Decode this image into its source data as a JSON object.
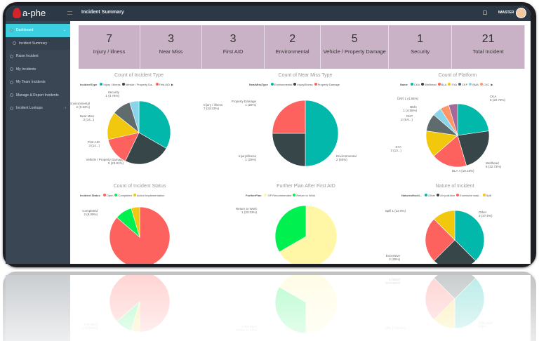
{
  "header": {
    "brand": "a-phe",
    "title": "Incident Summary",
    "user": "IMASTER"
  },
  "sidebar": {
    "items": [
      {
        "label": "Dashboard",
        "active": true
      },
      {
        "label": "Incident Summary",
        "sub": true
      },
      {
        "label": "Raise Incident"
      },
      {
        "label": "My Incidents"
      },
      {
        "label": "My Team Incidents"
      },
      {
        "label": "Manage & Report Incidents"
      },
      {
        "label": "Incident Lookups"
      }
    ]
  },
  "kpis": [
    {
      "value": "7",
      "label": "Injury / illness"
    },
    {
      "value": "3",
      "label": "Near Miss"
    },
    {
      "value": "3",
      "label": "First AID"
    },
    {
      "value": "2",
      "label": "Environmental"
    },
    {
      "value": "5",
      "label": "Vehicle / Property Damage"
    },
    {
      "value": "1",
      "label": "Security"
    },
    {
      "value": "21",
      "label": "Total Incident"
    }
  ],
  "chart_data": [
    {
      "type": "pie",
      "title": "Count of Incident Type",
      "legend_title": "IncidentType",
      "legend": [
        "Injury / illness",
        "Vehicle / Property Da...",
        "First AID"
      ],
      "slices": [
        {
          "name": "Injury / illness",
          "value": 7,
          "label": "Injury / illness",
          "sublabel": "7 (33.33%)",
          "color": "#01b8aa"
        },
        {
          "name": "Vehicle / Property Damage",
          "value": 5,
          "label": "Vehicle / Property Damage",
          "sublabel": "5 (23.81%)",
          "color": "#374649"
        },
        {
          "name": "First AID",
          "value": 3,
          "label": "First AID",
          "sublabel": "3 (14...)",
          "color": "#fd625e"
        },
        {
          "name": "Near Miss",
          "value": 3,
          "label": "Near Miss",
          "sublabel": "3 (14...)",
          "color": "#f2c80f"
        },
        {
          "name": "Environmental",
          "value": 2,
          "label": "Environmental",
          "sublabel": "2 (9.52%)",
          "color": "#5f6b6d"
        },
        {
          "name": "Security",
          "value": 1,
          "label": "Security",
          "sublabel": "1 (4.76%)",
          "color": "#8ad4eb"
        }
      ]
    },
    {
      "type": "pie",
      "title": "Count of Near Miss Type",
      "legend_title": "NearMissType",
      "legend": [
        "Environmental",
        "Injury/Illness",
        "Property Damage"
      ],
      "slices": [
        {
          "name": "Environmental",
          "value": 2,
          "label": "Environmental",
          "sublabel": "2 (50%)",
          "color": "#01b8aa"
        },
        {
          "name": "Injury/Illness",
          "value": 1,
          "label": "Injury/Illness",
          "sublabel": "1 (25%)",
          "color": "#374649"
        },
        {
          "name": "Property Damage",
          "value": 1,
          "label": "Property Damage",
          "sublabel": "1 (25%)",
          "color": "#fd625e"
        }
      ]
    },
    {
      "type": "pie",
      "title": "Count of Platform",
      "legend_title": "Name",
      "legend": [
        "CKA",
        "Wellhead",
        "BLA",
        "SYA",
        "CKP",
        "BMA",
        "CKC"
      ],
      "slices": [
        {
          "name": "CKA",
          "value": 5,
          "label": "CKA",
          "sublabel": "5 (22.73%)",
          "color": "#01b8aa"
        },
        {
          "name": "Wellhead",
          "value": 5,
          "label": "Wellhead",
          "sublabel": "5 (22.73%)",
          "color": "#374649"
        },
        {
          "name": "BLA",
          "value": 4,
          "label": "BLA 4 (18.18%)",
          "sublabel": "",
          "color": "#fd625e"
        },
        {
          "name": "SYA",
          "value": 3,
          "label": "SYA",
          "sublabel": "3 (13...)",
          "color": "#f2c80f"
        },
        {
          "name": "CKP",
          "value": 2,
          "label": "CKP",
          "sublabel": "2 (9.0...)",
          "color": "#5f6b6d"
        },
        {
          "name": "BMA",
          "value": 1,
          "label": "BMA",
          "sublabel": "1 (4.55%)",
          "color": "#8ad4eb"
        },
        {
          "name": "CKC",
          "value": 1,
          "label": "",
          "sublabel": "",
          "color": "#fe9666"
        },
        {
          "name": "CKR",
          "value": 1,
          "label": "CKR 1 (4.55%)",
          "sublabel": "",
          "color": "#a66999"
        }
      ]
    },
    {
      "type": "pie",
      "title": "Count of Incident Status",
      "legend_title": "Incident Status",
      "legend": [
        "Open",
        "Completed",
        "Action Implementation"
      ],
      "slices": [
        {
          "name": "Open",
          "value": 19,
          "label": "",
          "sublabel": "",
          "color": "#fd625e"
        },
        {
          "name": "Completed",
          "value": 2,
          "label": "Completed",
          "sublabel": "2 (9.09%)",
          "color": "#00f050"
        },
        {
          "name": "Action Implementation",
          "value": 1,
          "label": "",
          "sublabel": "",
          "color": "#f2c80f"
        }
      ]
    },
    {
      "type": "pie",
      "title": "Further Plan After First AID",
      "legend_title": "FurtherPlan",
      "legend": [
        "GP Recommended",
        "Return to Work"
      ],
      "slices": [
        {
          "name": "GP Recommended",
          "value": 2,
          "label": "",
          "sublabel": "",
          "color": "#fff6a6"
        },
        {
          "name": "Return to Work",
          "value": 1,
          "label": "Return to Work",
          "sublabel": "1 (33.33%)",
          "color": "#00f050"
        }
      ]
    },
    {
      "type": "pie",
      "title": "Nature of Incident",
      "legend_title": "NatureofIncid...",
      "legend": [
        "Other",
        "Air pollution",
        "Excessive wast...",
        "Spill"
      ],
      "slices": [
        {
          "name": "Other",
          "value": 3,
          "label": "Other",
          "sublabel": "3 (37.5%)",
          "color": "#01b8aa"
        },
        {
          "name": "Air pollution",
          "value": 2,
          "label": "",
          "sublabel": "",
          "color": "#374649"
        },
        {
          "name": "Excessive",
          "value": 2,
          "label": "Excessive",
          "sublabel": "2 (25%)",
          "color": "#fd625e"
        },
        {
          "name": "Spill",
          "value": 1,
          "label": "Spill 1 (12.5%)",
          "sublabel": "",
          "color": "#f2c80f"
        }
      ]
    }
  ]
}
